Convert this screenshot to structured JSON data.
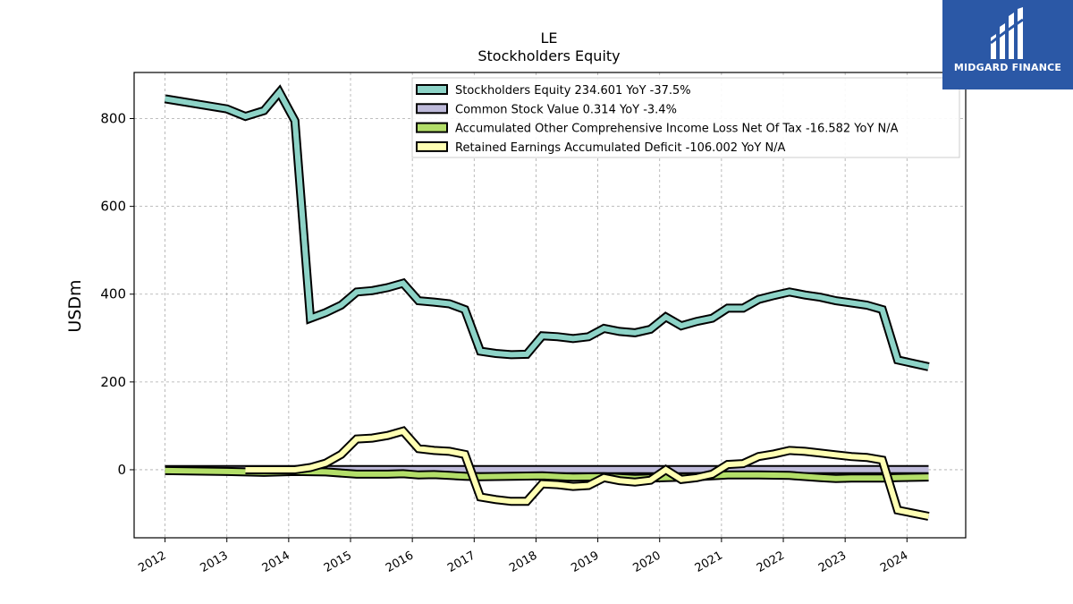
{
  "brand": {
    "name": "MIDGARD FINANCE",
    "color": "#2b58a6"
  },
  "chart_data": {
    "type": "line",
    "title": "LE",
    "subtitle": "Stockholders  Equity",
    "xlabel": "",
    "ylabel": "USDm",
    "xlim": [
      2011.5,
      2024.95
    ],
    "ylim": [
      -155,
      905
    ],
    "yticks": [
      0,
      200,
      400,
      600,
      800
    ],
    "xticks": [
      "2012",
      "2013",
      "2014",
      "2015",
      "2016",
      "2017",
      "2018",
      "2019",
      "2020",
      "2021",
      "2022",
      "2023",
      "2024"
    ],
    "grid": true,
    "legend_position": "top-right",
    "series": [
      {
        "name": "Stockholders Equity  234.601 YoY -37.5%",
        "color": "#8dd3c7",
        "x": [
          2012.0,
          2013.0,
          2013.3,
          2013.6,
          2013.85,
          2014.1,
          2014.35,
          2014.6,
          2014.85,
          2015.1,
          2015.35,
          2015.6,
          2015.85,
          2016.1,
          2016.35,
          2016.6,
          2016.85,
          2017.1,
          2017.35,
          2017.6,
          2017.85,
          2018.1,
          2018.35,
          2018.6,
          2018.85,
          2019.1,
          2019.35,
          2019.6,
          2019.85,
          2020.1,
          2020.35,
          2020.6,
          2020.85,
          2021.1,
          2021.35,
          2021.6,
          2021.85,
          2022.1,
          2022.35,
          2022.6,
          2022.85,
          2023.1,
          2023.35,
          2023.6,
          2023.85,
          2024.35
        ],
        "values": [
          845,
          822,
          805,
          818,
          860,
          795,
          345,
          358,
          375,
          405,
          408,
          415,
          425,
          385,
          382,
          378,
          365,
          270,
          265,
          262,
          263,
          305,
          303,
          299,
          303,
          322,
          315,
          312,
          320,
          348,
          328,
          338,
          345,
          368,
          368,
          388,
          397,
          405,
          398,
          393,
          385,
          380,
          375,
          365,
          250,
          234.601
        ]
      },
      {
        "name": "Common Stock Value  0.314 YoY -3.4%",
        "color": "#bebada",
        "x": [
          2012.0,
          2024.35
        ],
        "values": [
          0.3,
          0.314
        ]
      },
      {
        "name": "Accumulated Other Comprehensive Income Loss Net Of Tax  -16.582 YoY N/A",
        "color": "#b3de69",
        "x": [
          2012.0,
          2013.0,
          2013.6,
          2014.1,
          2014.6,
          2015.1,
          2015.6,
          2015.85,
          2016.1,
          2016.35,
          2016.6,
          2016.85,
          2017.1,
          2017.6,
          2018.1,
          2018.6,
          2019.1,
          2019.6,
          2020.1,
          2020.6,
          2021.1,
          2021.6,
          2022.1,
          2022.6,
          2022.85,
          2023.1,
          2023.6,
          2023.85,
          2024.35
        ],
        "values": [
          -2,
          -4,
          -6,
          -4,
          -5,
          -10,
          -10,
          -9,
          -12,
          -11,
          -13,
          -15,
          -16,
          -15,
          -14,
          -17,
          -16,
          -20,
          -18,
          -16,
          -12,
          -12,
          -13,
          -18,
          -20,
          -19,
          -19,
          -18,
          -16.582
        ]
      },
      {
        "name": "Retained Earnings Accumulated Deficit  -106.002 YoY N/A",
        "color": "#ffffb3",
        "x": [
          2013.3,
          2013.6,
          2013.85,
          2014.1,
          2014.35,
          2014.6,
          2014.85,
          2015.1,
          2015.35,
          2015.6,
          2015.85,
          2016.1,
          2016.35,
          2016.6,
          2016.85,
          2017.1,
          2017.35,
          2017.6,
          2017.85,
          2018.1,
          2018.35,
          2018.6,
          2018.85,
          2019.1,
          2019.35,
          2019.6,
          2019.85,
          2020.1,
          2020.35,
          2020.6,
          2020.85,
          2021.1,
          2021.35,
          2021.6,
          2021.85,
          2022.1,
          2022.35,
          2022.6,
          2022.85,
          2023.1,
          2023.35,
          2023.6,
          2023.85,
          2024.35
        ],
        "values": [
          0,
          0,
          0,
          0,
          5,
          15,
          35,
          70,
          72,
          78,
          88,
          48,
          44,
          42,
          35,
          -62,
          -68,
          -72,
          -72,
          -32,
          -34,
          -38,
          -36,
          -18,
          -25,
          -28,
          -24,
          0,
          -22,
          -18,
          -10,
          12,
          14,
          30,
          36,
          44,
          42,
          38,
          34,
          30,
          28,
          22,
          -92,
          -106.002
        ]
      }
    ]
  }
}
